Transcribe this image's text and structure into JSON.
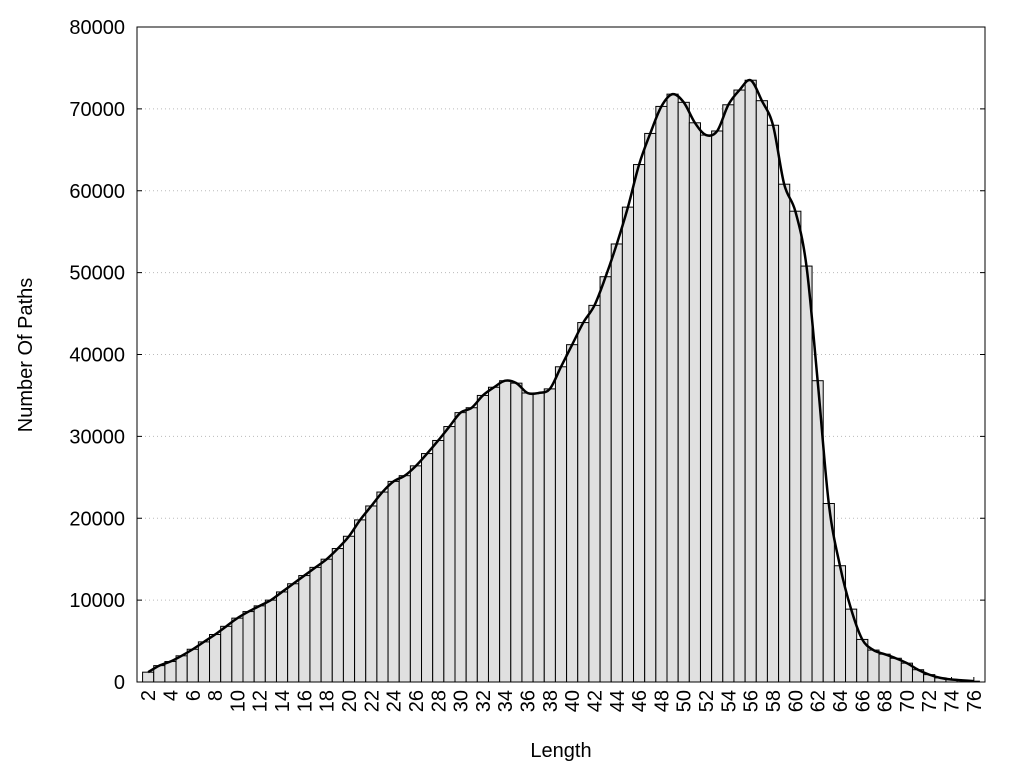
{
  "chart_data": {
    "type": "histogram",
    "x_label": "Length",
    "y_label": "Number Of Paths",
    "x": [
      2,
      3,
      4,
      5,
      6,
      7,
      8,
      9,
      10,
      11,
      12,
      13,
      14,
      15,
      16,
      17,
      18,
      19,
      20,
      21,
      22,
      23,
      24,
      25,
      26,
      27,
      28,
      29,
      30,
      31,
      32,
      33,
      34,
      35,
      36,
      37,
      38,
      39,
      40,
      41,
      42,
      43,
      44,
      45,
      46,
      47,
      48,
      49,
      50,
      51,
      52,
      53,
      54,
      55,
      56,
      57,
      58,
      59,
      60,
      61,
      62,
      63,
      64,
      65,
      66,
      67,
      68,
      69,
      70,
      71,
      72,
      73,
      74,
      75,
      76
    ],
    "values": [
      1200,
      2000,
      2500,
      3200,
      4000,
      4900,
      5800,
      6800,
      7800,
      8600,
      9300,
      10000,
      11000,
      12000,
      13000,
      14000,
      15000,
      16300,
      17800,
      19800,
      21500,
      23200,
      24500,
      25200,
      26400,
      27900,
      29500,
      31200,
      32900,
      33500,
      35000,
      36000,
      36800,
      36500,
      35300,
      35300,
      35800,
      38500,
      41200,
      43900,
      46000,
      49500,
      53500,
      58000,
      63200,
      67000,
      70300,
      71800,
      70800,
      68300,
      66800,
      67300,
      70500,
      72300,
      73500,
      71000,
      68000,
      60800,
      57500,
      50800,
      36800,
      21800,
      14200,
      8900,
      5200,
      3900,
      3400,
      2900,
      2300,
      1500,
      900,
      500,
      300,
      200,
      100
    ],
    "bar_color": "#e0e0e0",
    "edge_color": "#000000",
    "line_color": "#000000",
    "smooth_line": true,
    "xlim": [
      1,
      77
    ],
    "xticks": [
      2,
      4,
      6,
      8,
      10,
      12,
      14,
      16,
      18,
      20,
      22,
      24,
      26,
      28,
      30,
      32,
      34,
      36,
      38,
      40,
      42,
      44,
      46,
      48,
      50,
      52,
      54,
      56,
      58,
      60,
      62,
      64,
      66,
      68,
      70,
      72,
      74,
      76
    ],
    "ylim": [
      0,
      80000
    ],
    "yticks": [
      0,
      10000,
      20000,
      30000,
      40000,
      50000,
      60000,
      70000,
      80000
    ],
    "grid": true
  }
}
